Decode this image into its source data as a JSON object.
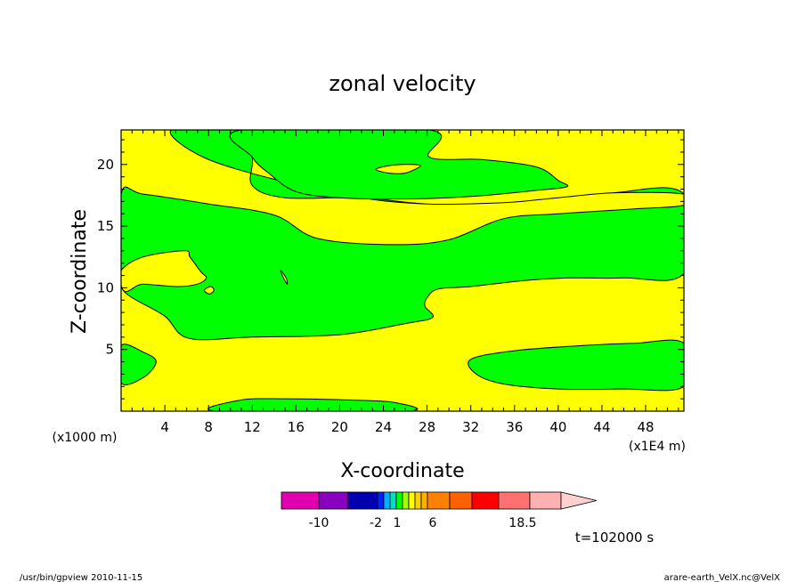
{
  "chart_data": {
    "type": "filled-contour",
    "title": "zonal velocity",
    "xlabel": "X-coordinate",
    "ylabel": "Z-coordinate",
    "x_unit_label": "(x1E4 m)",
    "y_unit_label": "(x1000 m)",
    "x_ticks": [
      "4",
      "8",
      "12",
      "16",
      "20",
      "24",
      "28",
      "32",
      "36",
      "40",
      "44",
      "48"
    ],
    "y_ticks": [
      "5",
      "10",
      "15",
      "20"
    ],
    "xlim": [
      0,
      51.5
    ],
    "ylim": [
      0,
      22.8
    ],
    "field_colors": {
      "positive": "#ffff00",
      "negative": "#00ff00"
    },
    "green_regions": [
      [
        [
          4.6,
          22.8
        ],
        [
          7.5,
          20.6
        ],
        [
          14,
          18.8
        ],
        [
          22,
          17.3
        ],
        [
          28,
          16.8
        ],
        [
          35,
          16.9
        ],
        [
          40,
          17.3
        ],
        [
          45,
          17.7
        ],
        [
          51.5,
          17.6
        ],
        [
          51.5,
          11.2
        ],
        [
          46,
          10.8
        ],
        [
          41,
          10.8
        ],
        [
          37,
          10.6
        ],
        [
          32,
          10.1
        ],
        [
          29,
          9.9
        ],
        [
          28,
          9.2
        ],
        [
          27.8,
          8.5
        ],
        [
          28.5,
          7.6
        ],
        [
          26,
          7.1
        ],
        [
          20,
          6.2
        ],
        [
          12,
          6.0
        ],
        [
          6.2,
          5.9
        ],
        [
          4,
          7.7
        ],
        [
          1,
          9.2
        ],
        [
          0,
          10.1
        ],
        [
          0,
          11.4
        ],
        [
          2,
          12.5
        ],
        [
          5.8,
          13.0
        ],
        [
          6.3,
          12.5
        ],
        [
          7.3,
          11.3
        ],
        [
          7.8,
          10.8
        ],
        [
          7.0,
          10.3
        ],
        [
          5.1,
          10.1
        ],
        [
          2,
          10.3
        ],
        [
          0,
          10.2
        ],
        [
          0,
          17.6
        ],
        [
          2,
          17.6
        ],
        [
          8,
          16.8
        ],
        [
          14,
          15.9
        ],
        [
          18,
          14.0
        ],
        [
          25,
          13.5
        ],
        [
          30,
          13.9
        ],
        [
          35,
          15.6
        ],
        [
          40,
          16.0
        ],
        [
          47,
          16.4
        ],
        [
          51.5,
          16.7
        ],
        [
          51.5,
          17.6
        ],
        [
          45,
          17.7
        ],
        [
          40,
          17.3
        ],
        [
          35,
          16.9
        ],
        [
          28,
          16.8
        ],
        [
          22,
          17.3
        ],
        [
          15,
          17.3
        ],
        [
          12,
          18.3
        ],
        [
          12,
          20.5
        ],
        [
          11,
          22.8
        ]
      ],
      [
        [
          28.2,
          22.8
        ],
        [
          28.2,
          20.6
        ],
        [
          33,
          20.4
        ],
        [
          38,
          19.8
        ],
        [
          40,
          18.7
        ],
        [
          40.8,
          18.2
        ],
        [
          38,
          17.9
        ],
        [
          32,
          17.4
        ],
        [
          26,
          17.2
        ],
        [
          20,
          17.3
        ],
        [
          16,
          17.8
        ],
        [
          13.5,
          19.3
        ],
        [
          12,
          20.6
        ],
        [
          11,
          22.8
        ]
      ],
      [
        [
          0,
          5.3
        ],
        [
          2,
          4.8
        ],
        [
          3.2,
          4.0
        ],
        [
          2,
          2.7
        ],
        [
          0,
          2.3
        ]
      ],
      [
        [
          32,
          4.2
        ],
        [
          36,
          4.9
        ],
        [
          42,
          5.3
        ],
        [
          47,
          5.5
        ],
        [
          51.5,
          5.5
        ],
        [
          51.5,
          2.0
        ],
        [
          46,
          1.8
        ],
        [
          40,
          1.8
        ],
        [
          35,
          2.2
        ],
        [
          32.5,
          3.0
        ]
      ],
      [
        [
          8.8,
          0
        ],
        [
          11,
          0.9
        ],
        [
          15,
          1.0
        ],
        [
          21,
          0.9
        ],
        [
          25,
          0.7
        ],
        [
          26,
          0
        ]
      ]
    ],
    "yellow_islands": [
      [
        [
          23.3,
          19.6
        ],
        [
          24.5,
          19.9
        ],
        [
          26,
          20.0
        ],
        [
          27.4,
          19.9
        ],
        [
          26,
          19.3
        ],
        [
          24.5,
          19.3
        ]
      ],
      [
        [
          14.6,
          11.4
        ],
        [
          15.1,
          10.8
        ],
        [
          15.2,
          10.3
        ],
        [
          14.8,
          10.9
        ]
      ],
      [
        [
          7.6,
          9.8
        ],
        [
          8.1,
          9.5
        ],
        [
          8.5,
          9.8
        ],
        [
          8.2,
          10.1
        ]
      ]
    ],
    "colorbar": {
      "colors": [
        "#e000b0",
        "#8a00c0",
        "#0000b0",
        "#0020ff",
        "#00b0ff",
        "#00e0c0",
        "#00ff00",
        "#a0ff00",
        "#ffff00",
        "#ffd000",
        "#ffb000",
        "#ff8000",
        "#ff6000",
        "#ff0000",
        "#ff7070",
        "#ffb0b0"
      ],
      "tick_labels": [
        "-10",
        "-2",
        "1",
        "6",
        "18.5"
      ]
    },
    "annotation": "t=102000 s"
  },
  "footer": {
    "left": "/usr/bin/gpview  2010-11-15",
    "right": "arare-earth_VelX.nc@VelX"
  }
}
